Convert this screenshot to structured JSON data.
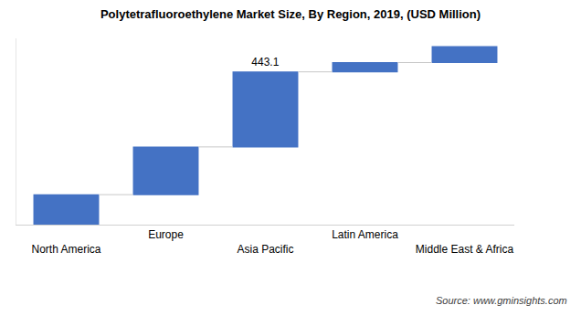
{
  "chart_data": {
    "type": "waterfall",
    "title": "Polytetrafluoroethylene Market Size, By Region, 2019, (USD Million)",
    "categories": [
      "North America",
      "Europe",
      "Asia Pacific",
      "Latin America",
      "Middle East & Africa"
    ],
    "values": [
      177,
      282,
      443.1,
      55,
      94
    ],
    "value_labels": [
      null,
      null,
      "443.1",
      null,
      null
    ],
    "data_labels": true,
    "color": "#4472c4",
    "ylim": [
      0,
      1100
    ],
    "grid": false,
    "tick_labels": "x",
    "annotations": [
      "Source: www.gminsights.com"
    ]
  }
}
